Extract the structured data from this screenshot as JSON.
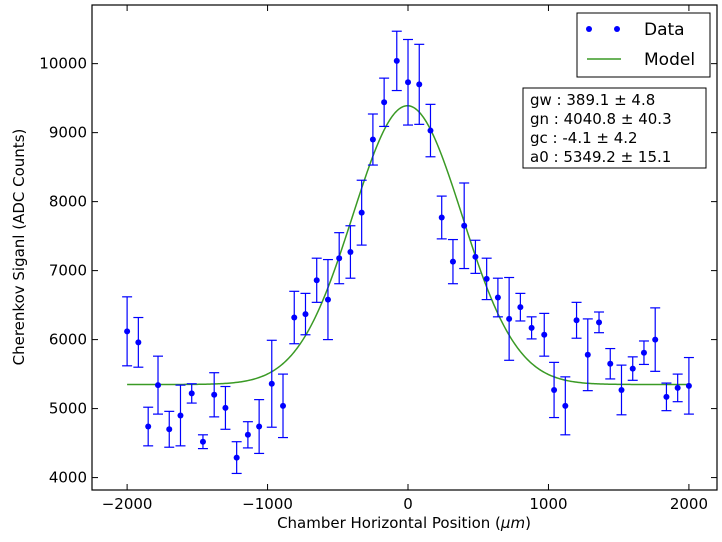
{
  "chart_data": {
    "type": "scatter",
    "title": "",
    "xlabel": "Chamber Horizontal Position (",
    "xlabel_unit": "μm",
    "xlabel_close": ")",
    "ylabel": "Cherenkov Siganl (ADC Counts)",
    "xlim": [
      -2250,
      2200
    ],
    "ylim": [
      3820,
      10850
    ],
    "xticks": [
      -2000,
      -1000,
      0,
      1000,
      2000
    ],
    "xtick_labels": [
      "−2000",
      "−1000",
      "0",
      "1000",
      "2000"
    ],
    "yticks": [
      4000,
      5000,
      6000,
      7000,
      8000,
      9000,
      10000
    ],
    "ytick_labels": [
      "4000",
      "5000",
      "6000",
      "7000",
      "8000",
      "9000",
      "10000"
    ],
    "grid": false,
    "legend": {
      "placement": "top-right",
      "entries": [
        {
          "label": "Data",
          "color": "#0000ff",
          "marker": "dot"
        },
        {
          "label": "Model",
          "color": "#3a9a25",
          "marker": "line"
        }
      ]
    },
    "fit_params": [
      "gw : 389.1 ± 4.8",
      "gn : 4040.8 ± 40.3",
      "gc : -4.1 ± 4.2",
      "a0 : 5349.2 ± 15.1"
    ],
    "model": {
      "name": "Model",
      "color": "#3a9a25",
      "gw": 389.1,
      "gn": 4040.8,
      "gc": -4.1,
      "a0": 5349.2,
      "x_range": [
        -2000,
        2000
      ]
    },
    "series": [
      {
        "name": "Data",
        "color": "#0000ff",
        "points": [
          {
            "x": -2000,
            "y": 6120,
            "err": 500
          },
          {
            "x": -1920,
            "y": 5960,
            "err": 360
          },
          {
            "x": -1850,
            "y": 4740,
            "err": 280
          },
          {
            "x": -1780,
            "y": 5340,
            "err": 420
          },
          {
            "x": -1700,
            "y": 4700,
            "err": 260
          },
          {
            "x": -1620,
            "y": 4900,
            "err": 440
          },
          {
            "x": -1540,
            "y": 5220,
            "err": 140
          },
          {
            "x": -1460,
            "y": 4520,
            "err": 100
          },
          {
            "x": -1380,
            "y": 5200,
            "err": 320
          },
          {
            "x": -1300,
            "y": 5010,
            "err": 310
          },
          {
            "x": -1220,
            "y": 4290,
            "err": 230
          },
          {
            "x": -1140,
            "y": 4620,
            "err": 190
          },
          {
            "x": -1060,
            "y": 4740,
            "err": 390
          },
          {
            "x": -970,
            "y": 5360,
            "err": 630
          },
          {
            "x": -890,
            "y": 5040,
            "err": 460
          },
          {
            "x": -810,
            "y": 6320,
            "err": 380
          },
          {
            "x": -730,
            "y": 6370,
            "err": 300
          },
          {
            "x": -650,
            "y": 6860,
            "err": 320
          },
          {
            "x": -570,
            "y": 6580,
            "err": 580
          },
          {
            "x": -490,
            "y": 7180,
            "err": 370
          },
          {
            "x": -410,
            "y": 7270,
            "err": 380
          },
          {
            "x": -330,
            "y": 7840,
            "err": 470
          },
          {
            "x": -250,
            "y": 8900,
            "err": 370
          },
          {
            "x": -170,
            "y": 9440,
            "err": 350
          },
          {
            "x": -80,
            "y": 10040,
            "err": 430
          },
          {
            "x": 0,
            "y": 9730,
            "err": 620
          },
          {
            "x": 80,
            "y": 9700,
            "err": 580
          },
          {
            "x": 160,
            "y": 9030,
            "err": 380
          },
          {
            "x": 240,
            "y": 7770,
            "err": 310
          },
          {
            "x": 320,
            "y": 7130,
            "err": 320
          },
          {
            "x": 400,
            "y": 7650,
            "err": 620
          },
          {
            "x": 480,
            "y": 7200,
            "err": 240
          },
          {
            "x": 560,
            "y": 6880,
            "err": 300
          },
          {
            "x": 640,
            "y": 6610,
            "err": 280
          },
          {
            "x": 720,
            "y": 6300,
            "err": 600
          },
          {
            "x": 800,
            "y": 6470,
            "err": 200
          },
          {
            "x": 880,
            "y": 6170,
            "err": 160
          },
          {
            "x": 970,
            "y": 6070,
            "err": 310
          },
          {
            "x": 1040,
            "y": 5270,
            "err": 400
          },
          {
            "x": 1120,
            "y": 5040,
            "err": 420
          },
          {
            "x": 1200,
            "y": 6280,
            "err": 260
          },
          {
            "x": 1280,
            "y": 5780,
            "err": 520
          },
          {
            "x": 1360,
            "y": 6250,
            "err": 150
          },
          {
            "x": 1440,
            "y": 5650,
            "err": 220
          },
          {
            "x": 1520,
            "y": 5270,
            "err": 360
          },
          {
            "x": 1600,
            "y": 5580,
            "err": 170
          },
          {
            "x": 1680,
            "y": 5810,
            "err": 170
          },
          {
            "x": 1760,
            "y": 6000,
            "err": 460
          },
          {
            "x": 1840,
            "y": 5170,
            "err": 200
          },
          {
            "x": 1920,
            "y": 5300,
            "err": 200
          },
          {
            "x": 2000,
            "y": 5330,
            "err": 410
          }
        ]
      }
    ]
  }
}
